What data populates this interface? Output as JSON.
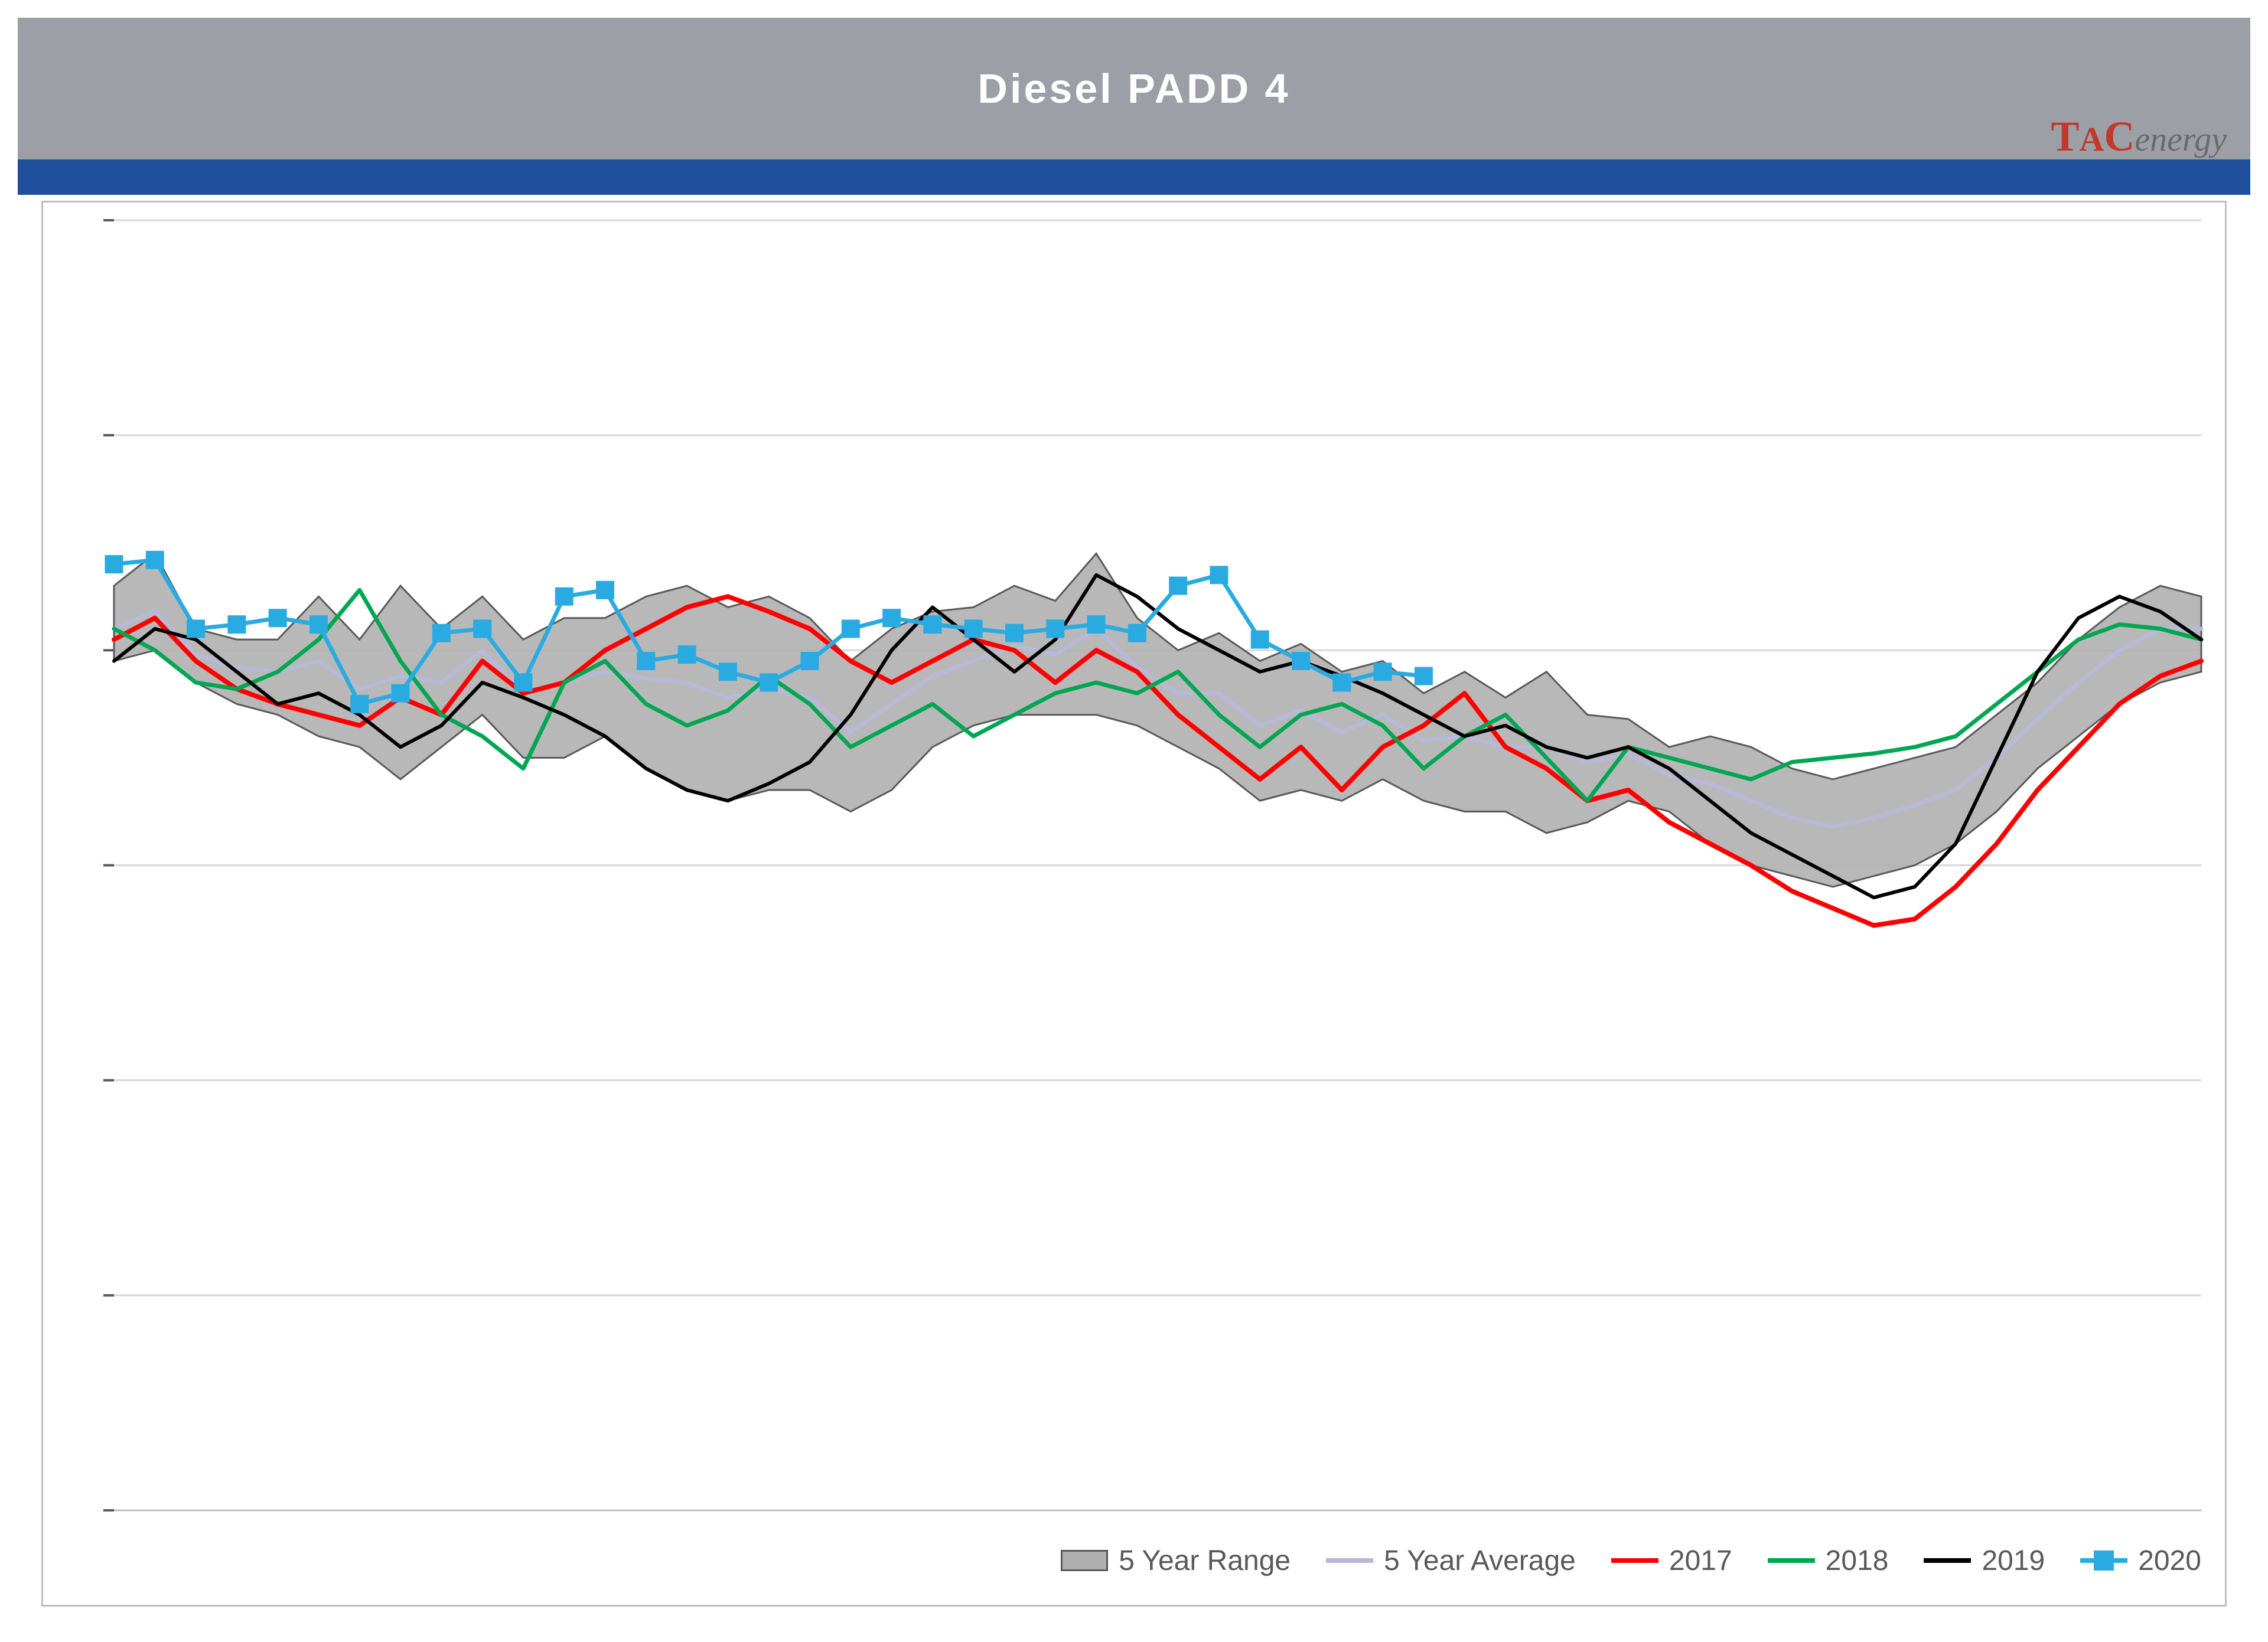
{
  "title": "Diesel  PADD  4",
  "logo": {
    "tac": "TAC",
    "suffix": "energy"
  },
  "chart": {
    "type": "line-with-band",
    "background_color": "#ffffff",
    "grid_color": "#d9d9d9",
    "title_fontsize": 70,
    "title_color": "#ffffff",
    "titlebar_color": "#9ca0a6",
    "stripe_color": "#1f4e9c",
    "border_color": "#bfbfbf",
    "x_count": 52,
    "xlim": [
      1,
      52
    ],
    "ylim": [
      0,
      6
    ],
    "ytick_step": 1,
    "band": {
      "label": "5 Year Range",
      "fill": "#b0b0b0",
      "stroke": "#595959",
      "upper": [
        4.3,
        4.45,
        4.1,
        4.05,
        4.05,
        4.25,
        4.05,
        4.3,
        4.1,
        4.25,
        4.05,
        4.15,
        4.15,
        4.25,
        4.3,
        4.2,
        4.25,
        4.15,
        3.95,
        4.1,
        4.18,
        4.2,
        4.3,
        4.23,
        4.45,
        4.15,
        4.0,
        4.08,
        3.95,
        4.03,
        3.9,
        3.95,
        3.8,
        3.9,
        3.78,
        3.9,
        3.7,
        3.68,
        3.55,
        3.6,
        3.55,
        3.45,
        3.4,
        3.45,
        3.5,
        3.55,
        3.7,
        3.85,
        4.05,
        4.2,
        4.3,
        4.25
      ],
      "lower": [
        3.95,
        4.0,
        3.85,
        3.75,
        3.7,
        3.6,
        3.55,
        3.4,
        3.55,
        3.7,
        3.5,
        3.5,
        3.6,
        3.45,
        3.35,
        3.3,
        3.35,
        3.35,
        3.25,
        3.35,
        3.55,
        3.65,
        3.7,
        3.7,
        3.7,
        3.65,
        3.55,
        3.45,
        3.3,
        3.35,
        3.3,
        3.4,
        3.3,
        3.25,
        3.25,
        3.15,
        3.2,
        3.3,
        3.25,
        3.1,
        3.0,
        2.95,
        2.9,
        2.95,
        3.0,
        3.1,
        3.25,
        3.45,
        3.6,
        3.75,
        3.85,
        3.9
      ]
    },
    "series": [
      {
        "name": "5 Year Average",
        "color": "#b8b8d9",
        "width": 7,
        "data": [
          4.1,
          4.18,
          3.98,
          3.92,
          3.9,
          3.95,
          3.82,
          3.88,
          3.85,
          4.0,
          3.8,
          3.85,
          3.9,
          3.87,
          3.85,
          3.78,
          3.82,
          3.78,
          3.62,
          3.75,
          3.88,
          3.95,
          4.02,
          3.98,
          4.1,
          3.92,
          3.8,
          3.8,
          3.65,
          3.72,
          3.62,
          3.7,
          3.58,
          3.6,
          3.55,
          3.55,
          3.48,
          3.52,
          3.42,
          3.38,
          3.3,
          3.22,
          3.18,
          3.22,
          3.28,
          3.35,
          3.5,
          3.68,
          3.85,
          4.0,
          4.1,
          4.1
        ]
      },
      {
        "name": "2017",
        "color": "#ff0000",
        "width": 8,
        "data": [
          4.05,
          4.15,
          3.95,
          3.82,
          3.75,
          3.7,
          3.65,
          3.78,
          3.7,
          3.95,
          3.8,
          3.85,
          4.0,
          4.1,
          4.2,
          4.25,
          4.18,
          4.1,
          3.95,
          3.85,
          3.95,
          4.05,
          4.0,
          3.85,
          4.0,
          3.9,
          3.7,
          3.55,
          3.4,
          3.55,
          3.35,
          3.55,
          3.65,
          3.8,
          3.55,
          3.45,
          3.3,
          3.35,
          3.2,
          3.1,
          3.0,
          2.88,
          2.8,
          2.72,
          2.75,
          2.9,
          3.1,
          3.35,
          3.55,
          3.75,
          3.88,
          3.95
        ]
      },
      {
        "name": "2018",
        "color": "#00a651",
        "width": 7,
        "data": [
          4.1,
          4.0,
          3.85,
          3.82,
          3.9,
          4.05,
          4.28,
          3.95,
          3.7,
          3.6,
          3.45,
          3.85,
          3.95,
          3.75,
          3.65,
          3.72,
          3.88,
          3.75,
          3.55,
          3.65,
          3.75,
          3.6,
          3.7,
          3.8,
          3.85,
          3.8,
          3.9,
          3.7,
          3.55,
          3.7,
          3.75,
          3.65,
          3.45,
          3.6,
          3.7,
          3.5,
          3.3,
          3.55,
          3.5,
          3.45,
          3.4,
          3.48,
          3.5,
          3.52,
          3.55,
          3.6,
          3.75,
          3.9,
          4.05,
          4.12,
          4.1,
          4.05
        ]
      },
      {
        "name": "2019",
        "color": "#000000",
        "width": 6,
        "data": [
          3.95,
          4.1,
          4.05,
          3.9,
          3.75,
          3.8,
          3.7,
          3.55,
          3.65,
          3.85,
          3.78,
          3.7,
          3.6,
          3.45,
          3.35,
          3.3,
          3.38,
          3.48,
          3.7,
          4.0,
          4.2,
          4.05,
          3.9,
          4.05,
          4.35,
          4.25,
          4.1,
          4.0,
          3.9,
          3.95,
          3.88,
          3.8,
          3.7,
          3.6,
          3.65,
          3.55,
          3.5,
          3.55,
          3.45,
          3.3,
          3.15,
          3.05,
          2.95,
          2.85,
          2.9,
          3.1,
          3.5,
          3.9,
          4.15,
          4.25,
          4.18,
          4.05
        ]
      },
      {
        "name": "2020",
        "color": "#29abe2",
        "width": 7,
        "marker": "square",
        "marker_size": 30,
        "data": [
          4.4,
          4.42,
          4.1,
          4.12,
          4.15,
          4.12,
          3.75,
          3.8,
          4.08,
          4.1,
          3.85,
          4.25,
          4.28,
          3.95,
          3.98,
          3.9,
          3.85,
          3.95,
          4.1,
          4.15,
          4.12,
          4.1,
          4.08,
          4.1,
          4.12,
          4.08,
          4.3,
          4.35,
          4.05,
          3.95,
          3.85,
          3.9,
          3.88
        ]
      }
    ],
    "legend": {
      "fontsize": 48,
      "text_color": "#595959",
      "items": [
        {
          "key": "band",
          "label": "5 Year Range"
        },
        {
          "key": "avg",
          "label": "5 Year Average"
        },
        {
          "key": "2017",
          "label": "2017"
        },
        {
          "key": "2018",
          "label": "2018"
        },
        {
          "key": "2019",
          "label": "2019"
        },
        {
          "key": "2020",
          "label": "2020"
        }
      ]
    }
  }
}
